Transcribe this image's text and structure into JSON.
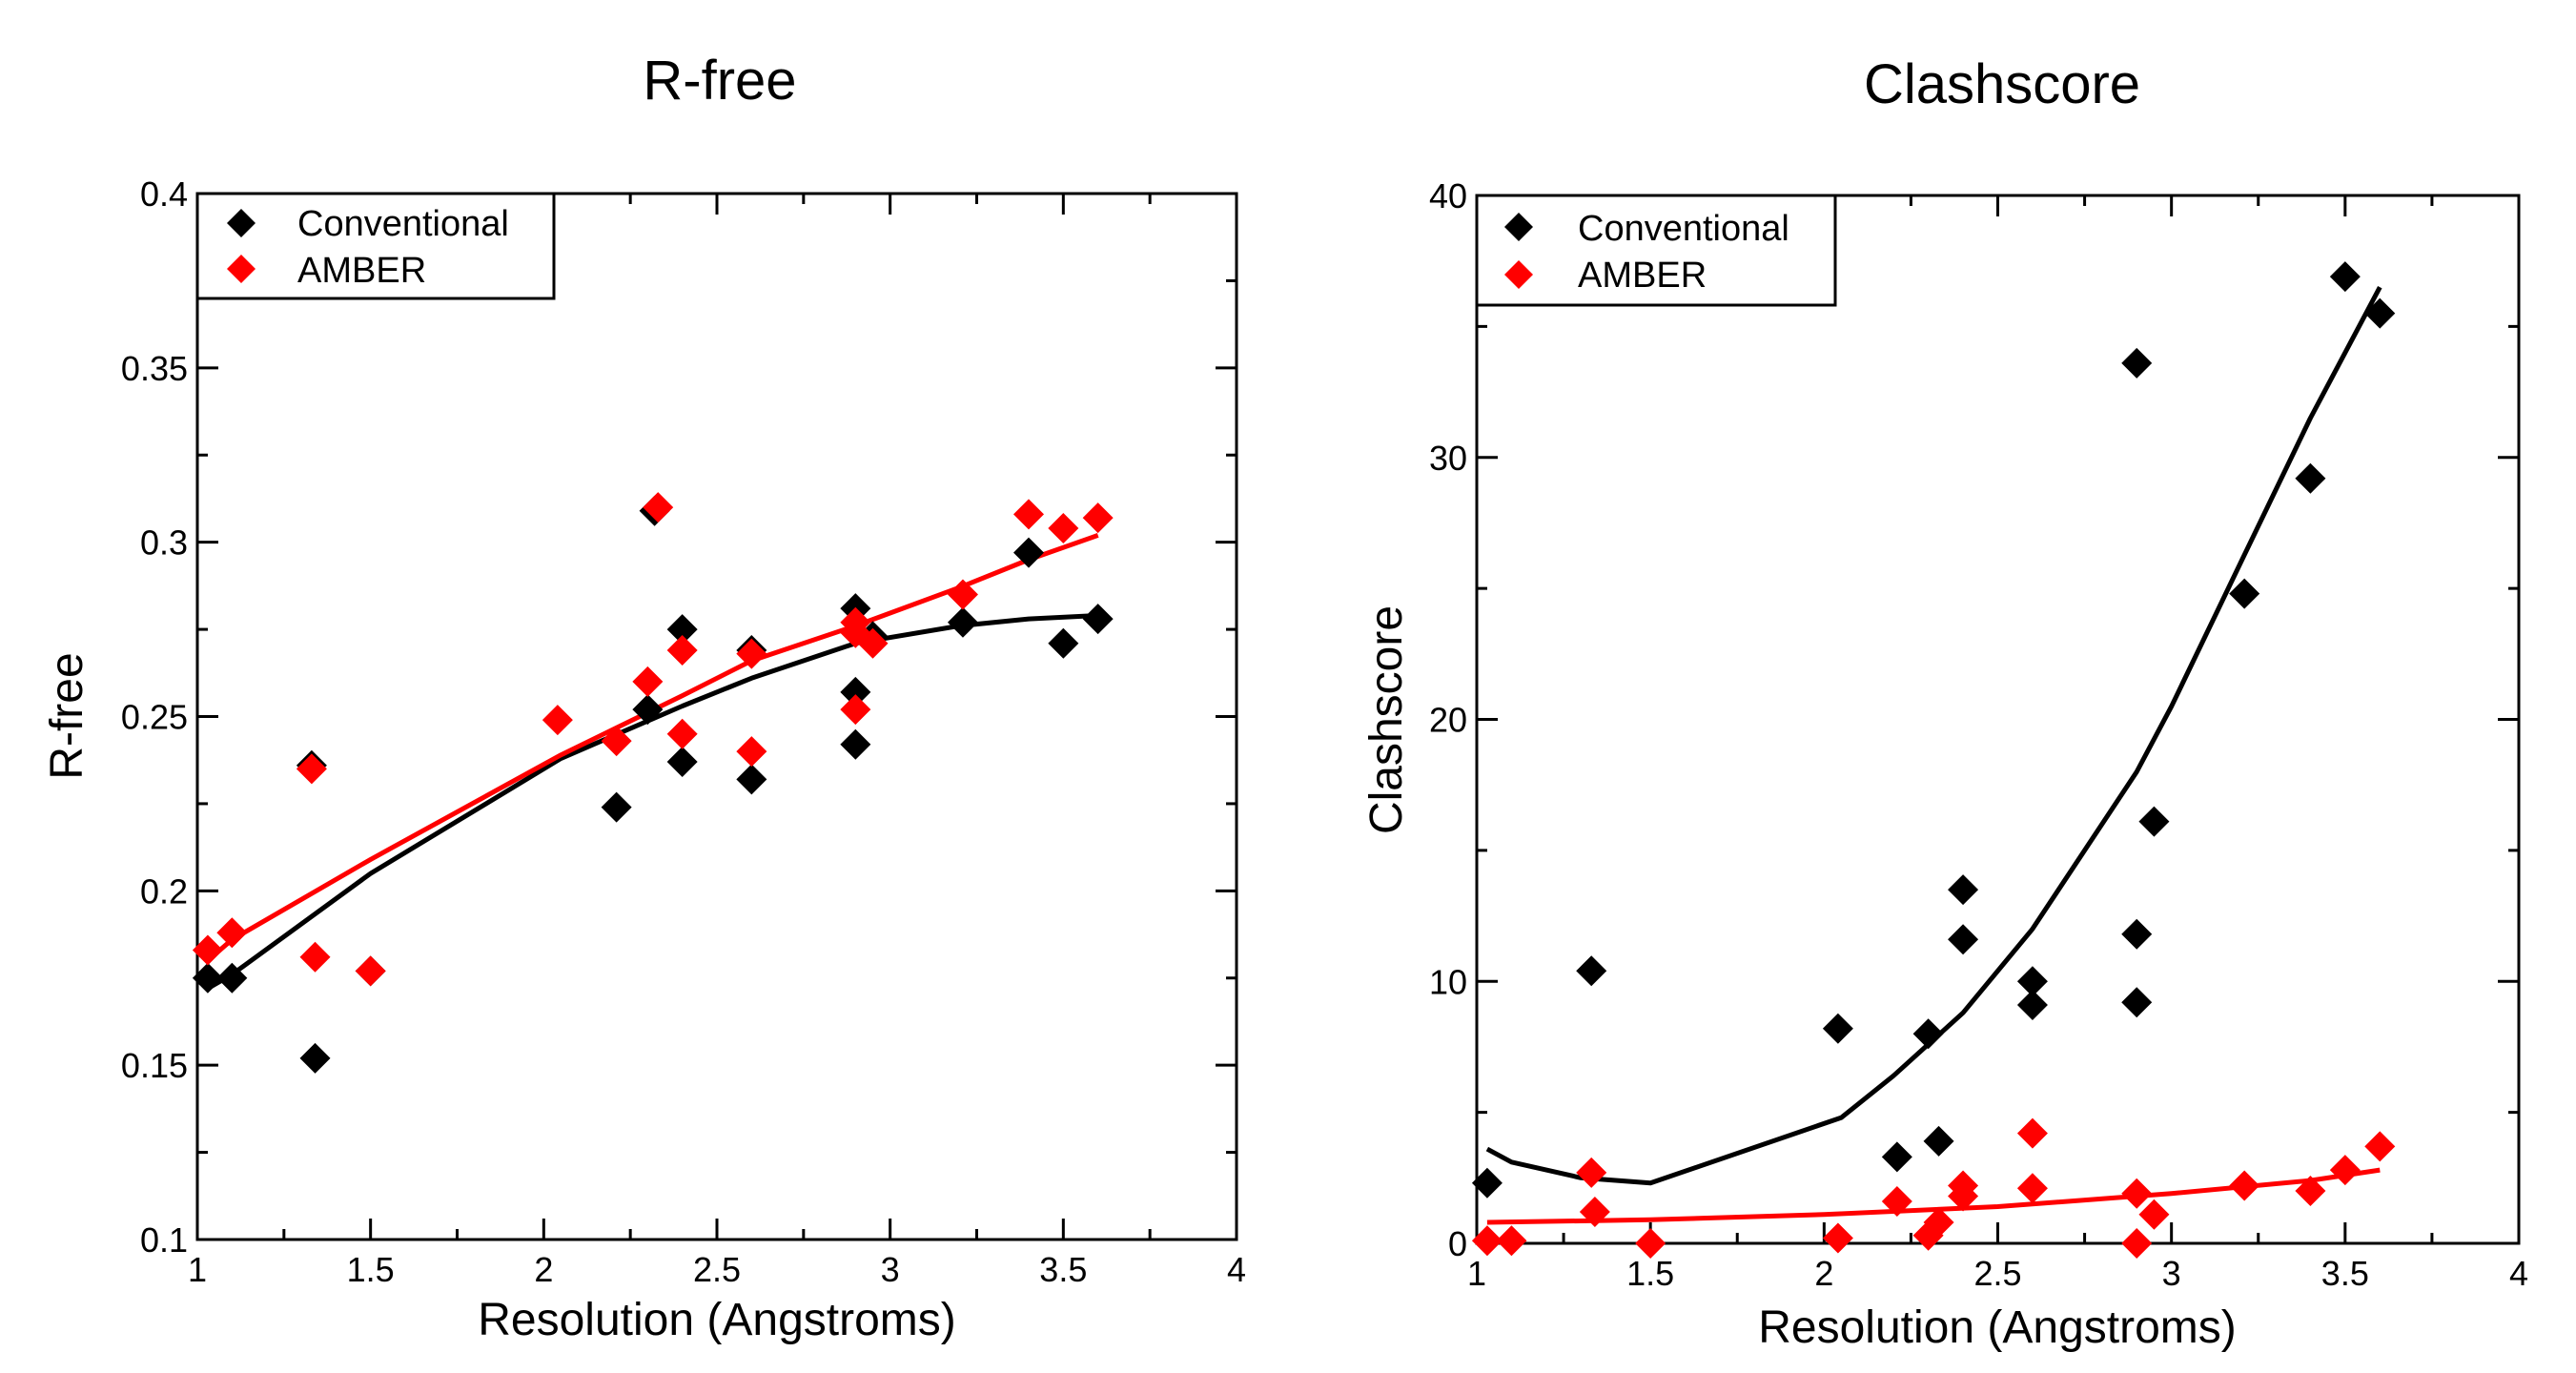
{
  "chart_data": [
    {
      "type": "scatter",
      "title": "R-free",
      "xlabel": "Resolution (Angstroms)",
      "ylabel": "R-free",
      "xlim": [
        1,
        4
      ],
      "ylim": [
        0.1,
        0.4
      ],
      "xticks": [
        "1",
        "1.5",
        "2",
        "2.5",
        "3",
        "3.5",
        "4"
      ],
      "yticks": [
        "0.1",
        "0.15",
        "0.2",
        "0.25",
        "0.3",
        "0.35",
        "0.4"
      ],
      "legend_position": "top-left",
      "series": [
        {
          "name": "Conventional",
          "color": "#000000",
          "points": [
            [
              1.03,
              0.175
            ],
            [
              1.1,
              0.175
            ],
            [
              1.33,
              0.236
            ],
            [
              1.34,
              0.152
            ],
            [
              1.5,
              0.177
            ],
            [
              2.21,
              0.224
            ],
            [
              2.3,
              0.252
            ],
            [
              2.32,
              0.309
            ],
            [
              2.4,
              0.275
            ],
            [
              2.4,
              0.237
            ],
            [
              2.6,
              0.269
            ],
            [
              2.6,
              0.232
            ],
            [
              2.9,
              0.281
            ],
            [
              2.9,
              0.257
            ],
            [
              2.9,
              0.242
            ],
            [
              2.95,
              0.273
            ],
            [
              3.21,
              0.277
            ],
            [
              3.4,
              0.297
            ],
            [
              3.5,
              0.271
            ],
            [
              3.6,
              0.278
            ]
          ],
          "fit": [
            [
              1.03,
              0.172
            ],
            [
              1.1,
              0.176
            ],
            [
              1.5,
              0.205
            ],
            [
              2.05,
              0.238
            ],
            [
              2.4,
              0.253
            ],
            [
              2.6,
              0.261
            ],
            [
              2.9,
              0.271
            ],
            [
              3.2,
              0.276
            ],
            [
              3.4,
              0.278
            ],
            [
              3.6,
              0.279
            ]
          ]
        },
        {
          "name": "AMBER",
          "color": "#ff0000",
          "points": [
            [
              1.03,
              0.183
            ],
            [
              1.1,
              0.188
            ],
            [
              1.33,
              0.235
            ],
            [
              1.34,
              0.181
            ],
            [
              1.5,
              0.177
            ],
            [
              2.04,
              0.249
            ],
            [
              2.21,
              0.243
            ],
            [
              2.3,
              0.26
            ],
            [
              2.33,
              0.31
            ],
            [
              2.4,
              0.269
            ],
            [
              2.4,
              0.245
            ],
            [
              2.6,
              0.268
            ],
            [
              2.6,
              0.24
            ],
            [
              2.9,
              0.277
            ],
            [
              2.9,
              0.274
            ],
            [
              2.9,
              0.252
            ],
            [
              2.95,
              0.271
            ],
            [
              3.21,
              0.285
            ],
            [
              3.4,
              0.308
            ],
            [
              3.5,
              0.304
            ],
            [
              3.6,
              0.307
            ]
          ],
          "fit": [
            [
              1.03,
              0.18
            ],
            [
              1.1,
              0.186
            ],
            [
              1.5,
              0.209
            ],
            [
              2.05,
              0.239
            ],
            [
              2.4,
              0.256
            ],
            [
              2.6,
              0.266
            ],
            [
              2.9,
              0.276
            ],
            [
              3.2,
              0.287
            ],
            [
              3.4,
              0.295
            ],
            [
              3.6,
              0.302
            ]
          ]
        }
      ]
    },
    {
      "type": "scatter",
      "title": "Clashscore",
      "xlabel": "Resolution (Angstroms)",
      "ylabel": "Clashscore",
      "xlim": [
        1,
        4
      ],
      "ylim": [
        0,
        40
      ],
      "xticks": [
        "1",
        "1.5",
        "2",
        "2.5",
        "3",
        "3.5",
        "4"
      ],
      "yticks": [
        "0",
        "10",
        "20",
        "30",
        "40"
      ],
      "legend_position": "top-left",
      "series": [
        {
          "name": "Conventional",
          "color": "#000000",
          "points": [
            [
              1.03,
              2.3
            ],
            [
              1.33,
              10.4
            ],
            [
              2.04,
              8.2
            ],
            [
              2.21,
              3.3
            ],
            [
              2.3,
              8.0
            ],
            [
              2.33,
              3.9
            ],
            [
              2.4,
              13.5
            ],
            [
              2.4,
              11.6
            ],
            [
              2.6,
              10.0
            ],
            [
              2.6,
              9.1
            ],
            [
              2.9,
              33.6
            ],
            [
              2.9,
              11.8
            ],
            [
              2.9,
              9.2
            ],
            [
              2.95,
              16.1
            ],
            [
              3.21,
              24.8
            ],
            [
              3.4,
              29.2
            ],
            [
              3.5,
              36.9
            ],
            [
              3.6,
              35.5
            ]
          ],
          "fit": [
            [
              1.03,
              3.6
            ],
            [
              1.1,
              3.1
            ],
            [
              1.3,
              2.5
            ],
            [
              1.5,
              2.3
            ],
            [
              2.05,
              4.8
            ],
            [
              2.2,
              6.4
            ],
            [
              2.4,
              8.8
            ],
            [
              2.6,
              12.0
            ],
            [
              2.9,
              18.0
            ],
            [
              3.0,
              20.5
            ],
            [
              3.2,
              26.0
            ],
            [
              3.4,
              31.5
            ],
            [
              3.6,
              36.5
            ]
          ]
        },
        {
          "name": "AMBER",
          "color": "#ff0000",
          "points": [
            [
              1.03,
              0.1
            ],
            [
              1.1,
              0.1
            ],
            [
              1.33,
              2.7
            ],
            [
              1.34,
              1.2
            ],
            [
              1.5,
              0.0
            ],
            [
              2.04,
              0.2
            ],
            [
              2.21,
              1.6
            ],
            [
              2.3,
              0.3
            ],
            [
              2.33,
              0.8
            ],
            [
              2.4,
              2.2
            ],
            [
              2.4,
              1.8
            ],
            [
              2.6,
              4.2
            ],
            [
              2.6,
              2.1
            ],
            [
              2.9,
              1.9
            ],
            [
              2.9,
              0.0
            ],
            [
              2.95,
              1.1
            ],
            [
              3.21,
              2.2
            ],
            [
              3.4,
              2.0
            ],
            [
              3.5,
              2.8
            ],
            [
              3.6,
              3.7
            ]
          ],
          "fit": [
            [
              1.03,
              0.8
            ],
            [
              1.5,
              0.9
            ],
            [
              2.0,
              1.1
            ],
            [
              2.5,
              1.4
            ],
            [
              3.0,
              1.9
            ],
            [
              3.4,
              2.4
            ],
            [
              3.6,
              2.8
            ]
          ]
        }
      ]
    }
  ]
}
